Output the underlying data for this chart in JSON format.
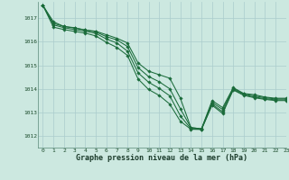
{
  "bg_color": "#cce8e0",
  "grid_color": "#aacccc",
  "line_color": "#1a6b3a",
  "title": "Graphe pression niveau de la mer (hPa)",
  "xlim": [
    -0.5,
    23
  ],
  "ylim": [
    1011.5,
    1017.7
  ],
  "yticks": [
    1012,
    1013,
    1014,
    1015,
    1016,
    1017
  ],
  "xticks": [
    0,
    1,
    2,
    3,
    4,
    5,
    6,
    7,
    8,
    9,
    10,
    11,
    12,
    13,
    14,
    15,
    16,
    17,
    18,
    19,
    20,
    21,
    22,
    23
  ],
  "series": [
    [
      1017.55,
      1016.85,
      1016.65,
      1016.6,
      1016.5,
      1016.45,
      1016.3,
      1016.15,
      1015.95,
      1015.1,
      1014.75,
      1014.6,
      1014.45,
      1013.6,
      1012.35,
      1012.3,
      1013.5,
      1013.2,
      1014.05,
      1013.8,
      1013.75,
      1013.65,
      1013.6,
      1013.6
    ],
    [
      1017.55,
      1016.78,
      1016.65,
      1016.58,
      1016.5,
      1016.42,
      1016.22,
      1016.08,
      1015.8,
      1014.9,
      1014.52,
      1014.3,
      1014.0,
      1013.15,
      1012.35,
      1012.3,
      1013.42,
      1013.12,
      1014.02,
      1013.78,
      1013.7,
      1013.62,
      1013.57,
      1013.57
    ],
    [
      1017.55,
      1016.72,
      1016.6,
      1016.52,
      1016.45,
      1016.36,
      1016.12,
      1015.95,
      1015.6,
      1014.68,
      1014.28,
      1014.02,
      1013.7,
      1012.85,
      1012.3,
      1012.28,
      1013.35,
      1013.02,
      1013.98,
      1013.75,
      1013.65,
      1013.58,
      1013.53,
      1013.53
    ],
    [
      1017.55,
      1016.62,
      1016.52,
      1016.44,
      1016.37,
      1016.25,
      1015.98,
      1015.76,
      1015.42,
      1014.42,
      1013.97,
      1013.72,
      1013.35,
      1012.62,
      1012.28,
      1012.27,
      1013.3,
      1012.95,
      1013.95,
      1013.72,
      1013.62,
      1013.55,
      1013.5,
      1013.5
    ]
  ]
}
